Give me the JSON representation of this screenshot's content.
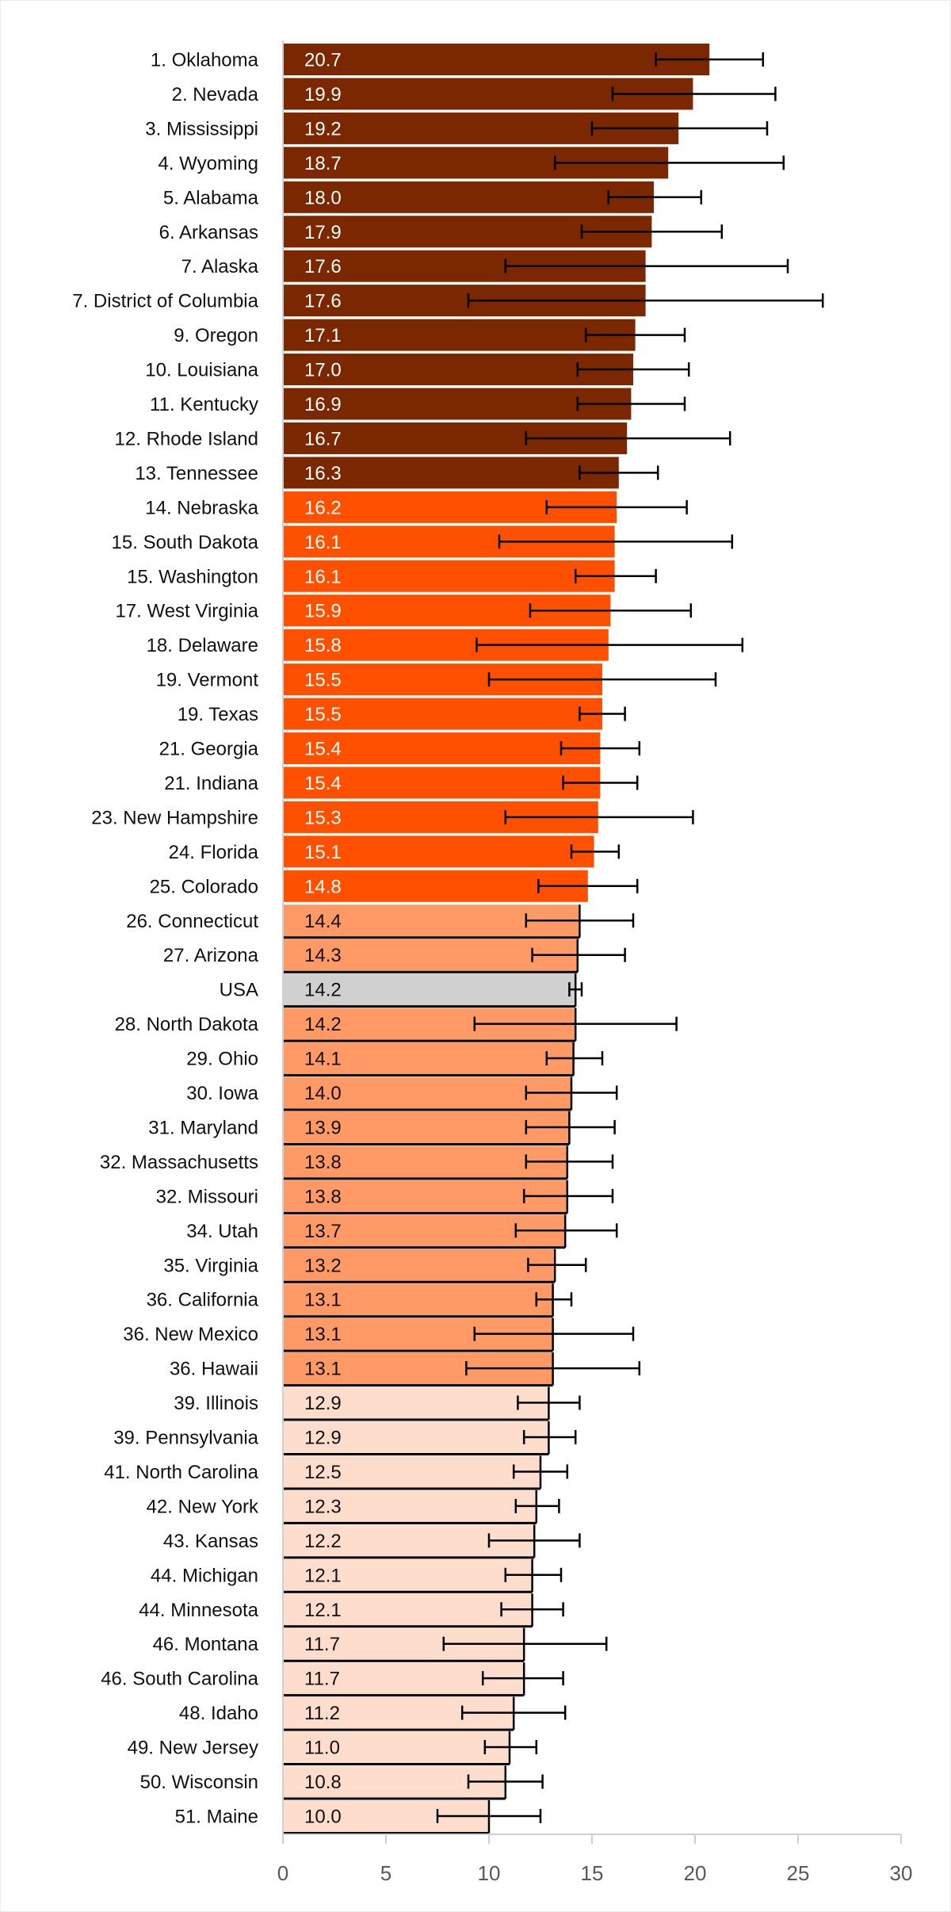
{
  "chart_data": {
    "type": "bar",
    "orientation": "horizontal",
    "title": "",
    "xlabel": "",
    "ylabel": "",
    "xlim": [
      0,
      30
    ],
    "xticks": [
      0,
      5,
      10,
      15,
      20,
      25,
      30
    ],
    "grid": false,
    "legend": "none",
    "error_bars": true,
    "tier_colors": {
      "tier1": "#7B2700",
      "tier2": "#FF5000",
      "tier3": "#FF9966",
      "tier4": "#FFDDCC",
      "usa": "#D0D0D0"
    },
    "value_label_colors": {
      "tier1": "#ffffff",
      "tier2": "#ffffff",
      "tier3": "#111111",
      "tier4": "#111111",
      "usa": "#111111"
    },
    "rows": [
      {
        "label": "1. Oklahoma",
        "value": 20.7,
        "value_label": "20.7",
        "ci": [
          18.1,
          23.3
        ],
        "tier": "tier1"
      },
      {
        "label": "2. Nevada",
        "value": 19.9,
        "value_label": "19.9",
        "ci": [
          16.0,
          23.9
        ],
        "tier": "tier1"
      },
      {
        "label": "3. Mississippi",
        "value": 19.2,
        "value_label": "19.2",
        "ci": [
          15.0,
          23.5
        ],
        "tier": "tier1"
      },
      {
        "label": "4. Wyoming",
        "value": 18.7,
        "value_label": "18.7",
        "ci": [
          13.2,
          24.3
        ],
        "tier": "tier1"
      },
      {
        "label": "5. Alabama",
        "value": 18.0,
        "value_label": "18.0",
        "ci": [
          15.8,
          20.3
        ],
        "tier": "tier1"
      },
      {
        "label": "6. Arkansas",
        "value": 17.9,
        "value_label": "17.9",
        "ci": [
          14.5,
          21.3
        ],
        "tier": "tier1"
      },
      {
        "label": "7. Alaska",
        "value": 17.6,
        "value_label": "17.6",
        "ci": [
          10.8,
          24.5
        ],
        "tier": "tier1"
      },
      {
        "label": "7. District of Columbia",
        "value": 17.6,
        "value_label": "17.6",
        "ci": [
          9.0,
          26.2
        ],
        "tier": "tier1"
      },
      {
        "label": "9. Oregon",
        "value": 17.1,
        "value_label": "17.1",
        "ci": [
          14.7,
          19.5
        ],
        "tier": "tier1"
      },
      {
        "label": "10. Louisiana",
        "value": 17.0,
        "value_label": "17.0",
        "ci": [
          14.3,
          19.7
        ],
        "tier": "tier1"
      },
      {
        "label": "11. Kentucky",
        "value": 16.9,
        "value_label": "16.9",
        "ci": [
          14.3,
          19.5
        ],
        "tier": "tier1"
      },
      {
        "label": "12. Rhode Island",
        "value": 16.7,
        "value_label": "16.7",
        "ci": [
          11.8,
          21.7
        ],
        "tier": "tier1"
      },
      {
        "label": "13. Tennessee",
        "value": 16.3,
        "value_label": "16.3",
        "ci": [
          14.4,
          18.2
        ],
        "tier": "tier1"
      },
      {
        "label": "14. Nebraska",
        "value": 16.2,
        "value_label": "16.2",
        "ci": [
          12.8,
          19.6
        ],
        "tier": "tier2"
      },
      {
        "label": "15. South Dakota",
        "value": 16.1,
        "value_label": "16.1",
        "ci": [
          10.5,
          21.8
        ],
        "tier": "tier2"
      },
      {
        "label": "15. Washington",
        "value": 16.1,
        "value_label": "16.1",
        "ci": [
          14.2,
          18.1
        ],
        "tier": "tier2"
      },
      {
        "label": "17. West Virginia",
        "value": 15.9,
        "value_label": "15.9",
        "ci": [
          12.0,
          19.8
        ],
        "tier": "tier2"
      },
      {
        "label": "18. Delaware",
        "value": 15.8,
        "value_label": "15.8",
        "ci": [
          9.4,
          22.3
        ],
        "tier": "tier2"
      },
      {
        "label": "19. Vermont",
        "value": 15.5,
        "value_label": "15.5",
        "ci": [
          10.0,
          21.0
        ],
        "tier": "tier2"
      },
      {
        "label": "19. Texas",
        "value": 15.5,
        "value_label": "15.5",
        "ci": [
          14.4,
          16.6
        ],
        "tier": "tier2"
      },
      {
        "label": "21. Georgia",
        "value": 15.4,
        "value_label": "15.4",
        "ci": [
          13.5,
          17.3
        ],
        "tier": "tier2"
      },
      {
        "label": "21. Indiana",
        "value": 15.4,
        "value_label": "15.4",
        "ci": [
          13.6,
          17.2
        ],
        "tier": "tier2"
      },
      {
        "label": "23. New Hampshire",
        "value": 15.3,
        "value_label": "15.3",
        "ci": [
          10.8,
          19.9
        ],
        "tier": "tier2"
      },
      {
        "label": "24. Florida",
        "value": 15.1,
        "value_label": "15.1",
        "ci": [
          14.0,
          16.3
        ],
        "tier": "tier2"
      },
      {
        "label": "25. Colorado",
        "value": 14.8,
        "value_label": "14.8",
        "ci": [
          12.4,
          17.2
        ],
        "tier": "tier2"
      },
      {
        "label": "26. Connecticut",
        "value": 14.4,
        "value_label": "14.4",
        "ci": [
          11.8,
          17.0
        ],
        "tier": "tier3"
      },
      {
        "label": "27. Arizona",
        "value": 14.3,
        "value_label": "14.3",
        "ci": [
          12.1,
          16.6
        ],
        "tier": "tier3"
      },
      {
        "label": "USA",
        "value": 14.2,
        "value_label": "14.2",
        "ci": [
          13.9,
          14.5
        ],
        "tier": "usa"
      },
      {
        "label": "28. North Dakota",
        "value": 14.2,
        "value_label": "14.2",
        "ci": [
          9.3,
          19.1
        ],
        "tier": "tier3"
      },
      {
        "label": "29. Ohio",
        "value": 14.1,
        "value_label": "14.1",
        "ci": [
          12.8,
          15.5
        ],
        "tier": "tier3"
      },
      {
        "label": "30. Iowa",
        "value": 14.0,
        "value_label": "14.0",
        "ci": [
          11.8,
          16.2
        ],
        "tier": "tier3"
      },
      {
        "label": "31. Maryland",
        "value": 13.9,
        "value_label": "13.9",
        "ci": [
          11.8,
          16.1
        ],
        "tier": "tier3"
      },
      {
        "label": "32. Massachusetts",
        "value": 13.8,
        "value_label": "13.8",
        "ci": [
          11.8,
          16.0
        ],
        "tier": "tier3"
      },
      {
        "label": "32. Missouri",
        "value": 13.8,
        "value_label": "13.8",
        "ci": [
          11.7,
          16.0
        ],
        "tier": "tier3"
      },
      {
        "label": "34. Utah",
        "value": 13.7,
        "value_label": "13.7",
        "ci": [
          11.3,
          16.2
        ],
        "tier": "tier3"
      },
      {
        "label": "35. Virginia",
        "value": 13.2,
        "value_label": "13.2",
        "ci": [
          11.9,
          14.7
        ],
        "tier": "tier3"
      },
      {
        "label": "36. California",
        "value": 13.1,
        "value_label": "13.1",
        "ci": [
          12.3,
          14.0
        ],
        "tier": "tier3"
      },
      {
        "label": "36. New Mexico",
        "value": 13.1,
        "value_label": "13.1",
        "ci": [
          9.3,
          17.0
        ],
        "tier": "tier3"
      },
      {
        "label": "36. Hawaii",
        "value": 13.1,
        "value_label": "13.1",
        "ci": [
          8.9,
          17.3
        ],
        "tier": "tier3"
      },
      {
        "label": "39. Illinois",
        "value": 12.9,
        "value_label": "12.9",
        "ci": [
          11.4,
          14.4
        ],
        "tier": "tier4"
      },
      {
        "label": "39. Pennsylvania",
        "value": 12.9,
        "value_label": "12.9",
        "ci": [
          11.7,
          14.2
        ],
        "tier": "tier4"
      },
      {
        "label": "41. North Carolina",
        "value": 12.5,
        "value_label": "12.5",
        "ci": [
          11.2,
          13.8
        ],
        "tier": "tier4"
      },
      {
        "label": "42. New York",
        "value": 12.3,
        "value_label": "12.3",
        "ci": [
          11.3,
          13.4
        ],
        "tier": "tier4"
      },
      {
        "label": "43. Kansas",
        "value": 12.2,
        "value_label": "12.2",
        "ci": [
          10.0,
          14.4
        ],
        "tier": "tier4"
      },
      {
        "label": "44. Michigan",
        "value": 12.1,
        "value_label": "12.1",
        "ci": [
          10.8,
          13.5
        ],
        "tier": "tier4"
      },
      {
        "label": "44. Minnesota",
        "value": 12.1,
        "value_label": "12.1",
        "ci": [
          10.6,
          13.6
        ],
        "tier": "tier4"
      },
      {
        "label": "46. Montana",
        "value": 11.7,
        "value_label": "11.7",
        "ci": [
          7.8,
          15.7
        ],
        "tier": "tier4"
      },
      {
        "label": "46. South Carolina",
        "value": 11.7,
        "value_label": "11.7",
        "ci": [
          9.7,
          13.6
        ],
        "tier": "tier4"
      },
      {
        "label": "48. Idaho",
        "value": 11.2,
        "value_label": "11.2",
        "ci": [
          8.7,
          13.7
        ],
        "tier": "tier4"
      },
      {
        "label": "49. New Jersey",
        "value": 11.0,
        "value_label": "11.0",
        "ci": [
          9.8,
          12.3
        ],
        "tier": "tier4"
      },
      {
        "label": "50. Wisconsin",
        "value": 10.8,
        "value_label": "10.8",
        "ci": [
          9.0,
          12.6
        ],
        "tier": "tier4"
      },
      {
        "label": "51. Maine",
        "value": 10.0,
        "value_label": "10.0",
        "ci": [
          7.5,
          12.5
        ],
        "tier": "tier4"
      }
    ]
  }
}
